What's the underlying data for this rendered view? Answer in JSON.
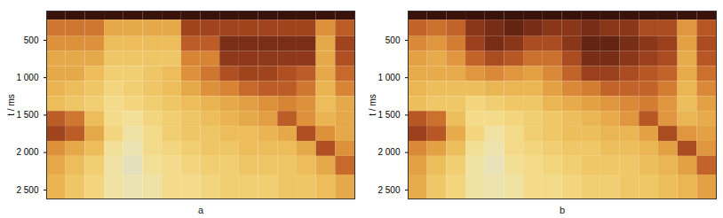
{
  "chart_data": [
    {
      "type": "heatmap",
      "caption": "a",
      "ylabel": "t / ms",
      "ylim": [
        110,
        2620
      ],
      "yticks": [
        500,
        {
          "value": 1000,
          "label": "1 000"
        },
        {
          "value": 1500,
          "label": "1 500"
        },
        {
          "value": 2000,
          "label": "2 000"
        },
        {
          "value": 2500,
          "label": "2 500"
        }
      ],
      "tick_labels": "y",
      "t_edges": [
        110,
        230,
        450,
        650,
        850,
        1050,
        1250,
        1450,
        1650,
        1850,
        2050,
        2300,
        2620
      ],
      "cells": [
        [
          0.85,
          0.85,
          0.85,
          0.85,
          0.85,
          0.85,
          0.85,
          0.85,
          0.85,
          0.85,
          0.85,
          0.85,
          0.85,
          0.85,
          0.85,
          0.85
        ],
        [
          0.4,
          0.4,
          0.4,
          0.2,
          0.2,
          0.2,
          0.2,
          0.6,
          0.6,
          0.6,
          0.6,
          0.6,
          0.6,
          0.6,
          0.3,
          0.5
        ],
        [
          0.3,
          0.3,
          0.3,
          0.1,
          0.1,
          0.1,
          0.1,
          0.5,
          0.5,
          0.7,
          0.7,
          0.7,
          0.7,
          0.7,
          0.2,
          0.6
        ],
        [
          0.2,
          0.2,
          0.2,
          0.05,
          0.05,
          0.05,
          0.05,
          0.35,
          0.35,
          0.65,
          0.65,
          0.65,
          0.65,
          0.65,
          0.2,
          0.55
        ],
        [
          0.2,
          0.2,
          0.1,
          0,
          0,
          0.05,
          0.1,
          0.3,
          0.4,
          0.55,
          0.6,
          0.6,
          0.55,
          0.5,
          0.2,
          0.45
        ],
        [
          0.15,
          0.1,
          0.05,
          -0.05,
          0,
          0.05,
          0.1,
          0.2,
          0.3,
          0.35,
          0.45,
          0.5,
          0.5,
          0.4,
          0.15,
          0.35
        ],
        [
          0.1,
          0.05,
          0,
          -0.1,
          -0.05,
          0,
          0.05,
          0.1,
          0.15,
          0.2,
          0.25,
          0.3,
          0.35,
          0.3,
          0.1,
          0.2
        ],
        [
          0.5,
          0.4,
          0.1,
          -0.1,
          -0.15,
          -0.05,
          0,
          0.05,
          0.1,
          0.15,
          0.2,
          0.25,
          0.5,
          0.3,
          0.15,
          0.2
        ],
        [
          0.6,
          0.5,
          0.2,
          -0.05,
          -0.2,
          -0.1,
          0,
          0.05,
          0.05,
          0.1,
          0.1,
          0.15,
          0.2,
          0.55,
          0.3,
          0.2
        ],
        [
          0.3,
          0.2,
          0.1,
          -0.15,
          -0.25,
          -0.1,
          -0.05,
          0,
          0.05,
          0.05,
          0.1,
          0.1,
          0.1,
          0.2,
          0.55,
          0.3
        ],
        [
          0.2,
          0.1,
          0,
          -0.2,
          -0.3,
          -0.15,
          -0.1,
          -0.05,
          0,
          0,
          0.05,
          0.05,
          0.05,
          0.1,
          0.2,
          0.45
        ],
        [
          0.15,
          0.05,
          -0.05,
          -0.2,
          -0.25,
          -0.2,
          -0.1,
          -0.1,
          -0.05,
          0,
          0,
          0,
          0.05,
          0.05,
          0.1,
          0.2
        ]
      ]
    },
    {
      "type": "heatmap",
      "caption": "b",
      "ylabel": "t / ms",
      "ylim": [
        110,
        2620
      ],
      "yticks": [
        500,
        {
          "value": 1000,
          "label": "1 000"
        },
        {
          "value": 1500,
          "label": "1 500"
        },
        {
          "value": 2000,
          "label": "2 000"
        },
        {
          "value": 2500,
          "label": "2 500"
        }
      ],
      "tick_labels": "y",
      "t_edges": [
        110,
        230,
        450,
        650,
        850,
        1050,
        1250,
        1450,
        1650,
        1850,
        2050,
        2300,
        2620
      ],
      "cells": [
        [
          0.9,
          0.9,
          0.9,
          0.9,
          0.9,
          0.9,
          0.9,
          0.9,
          0.9,
          0.9,
          0.9,
          0.9,
          0.9,
          0.9,
          0.9,
          0.9
        ],
        [
          0.5,
          0.45,
          0.5,
          0.7,
          0.75,
          0.8,
          0.75,
          0.7,
          0.7,
          0.75,
          0.7,
          0.7,
          0.6,
          0.6,
          0.3,
          0.55
        ],
        [
          0.35,
          0.3,
          0.4,
          0.65,
          0.75,
          0.7,
          0.6,
          0.6,
          0.7,
          0.8,
          0.8,
          0.75,
          0.7,
          0.65,
          0.25,
          0.6
        ],
        [
          0.25,
          0.2,
          0.3,
          0.5,
          0.6,
          0.55,
          0.45,
          0.45,
          0.6,
          0.75,
          0.75,
          0.7,
          0.65,
          0.6,
          0.2,
          0.55
        ],
        [
          0.2,
          0.2,
          0.2,
          0.3,
          0.35,
          0.3,
          0.25,
          0.35,
          0.5,
          0.65,
          0.65,
          0.6,
          0.55,
          0.5,
          0.2,
          0.45
        ],
        [
          0.15,
          0.1,
          0.1,
          0.1,
          0.15,
          0.15,
          0.15,
          0.25,
          0.35,
          0.4,
          0.5,
          0.5,
          0.5,
          0.4,
          0.15,
          0.35
        ],
        [
          0.1,
          0.05,
          0.05,
          -0.05,
          0,
          0.05,
          0.05,
          0.15,
          0.2,
          0.25,
          0.3,
          0.35,
          0.4,
          0.3,
          0.1,
          0.25
        ],
        [
          0.55,
          0.45,
          0.1,
          -0.1,
          -0.1,
          -0.05,
          0,
          0.05,
          0.1,
          0.15,
          0.2,
          0.3,
          0.55,
          0.3,
          0.15,
          0.2
        ],
        [
          0.65,
          0.55,
          0.2,
          -0.05,
          -0.2,
          -0.1,
          0,
          0.05,
          0.1,
          0.1,
          0.15,
          0.15,
          0.25,
          0.6,
          0.3,
          0.25
        ],
        [
          0.35,
          0.25,
          0.1,
          -0.15,
          -0.25,
          -0.1,
          -0.05,
          0,
          0.05,
          0.05,
          0.1,
          0.1,
          0.15,
          0.25,
          0.6,
          0.3
        ],
        [
          0.25,
          0.1,
          0,
          -0.2,
          -0.3,
          -0.15,
          -0.1,
          -0.05,
          0,
          0.05,
          0.05,
          0.05,
          0.1,
          0.15,
          0.25,
          0.5
        ],
        [
          0.2,
          0.05,
          -0.05,
          -0.2,
          -0.25,
          -0.2,
          -0.1,
          -0.1,
          -0.05,
          0,
          0,
          0.05,
          0.05,
          0.1,
          0.15,
          0.25
        ]
      ]
    }
  ]
}
